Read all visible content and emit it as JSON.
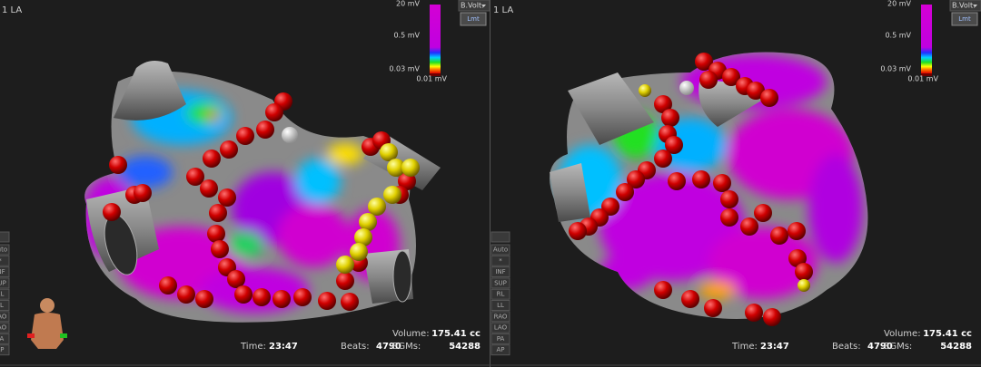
{
  "panels": [
    {
      "title": "1 LA",
      "mode": "B.Volt.",
      "button": "Lmt",
      "scale_labels": [
        "20 mV",
        "0.5 mV",
        "0.03 mV",
        "0.01 mV"
      ],
      "views": [
        "Auto",
        "*",
        "INF",
        "SUP",
        "RL",
        "LL",
        "RAO",
        "LAO",
        "PA",
        "AP"
      ],
      "stats": {
        "time_label": "Time:",
        "time": "23:47",
        "beats_label": "Beats:",
        "beats": "4790",
        "volume_label": "Volume:",
        "volume": "175.41 cc",
        "egms_label": "EGMs:",
        "egms": "54288"
      }
    },
    {
      "title": "1 LA",
      "mode": "B.Volt.",
      "button": "Lmt",
      "scale_labels": [
        "20 mV",
        "0.5 mV",
        "0.03 mV",
        "0.01 mV"
      ],
      "views": [
        "Auto",
        "*",
        "INF",
        "SUP",
        "RL",
        "LL",
        "RAO",
        "LAO",
        "PA",
        "AP"
      ],
      "stats": {
        "time_label": "Time:",
        "time": "23:47",
        "beats_label": "Beats:",
        "beats": "4790",
        "volume_label": "Volume:",
        "volume": "175.41 cc",
        "egms_label": "EGMs:",
        "egms": "54288"
      }
    }
  ]
}
